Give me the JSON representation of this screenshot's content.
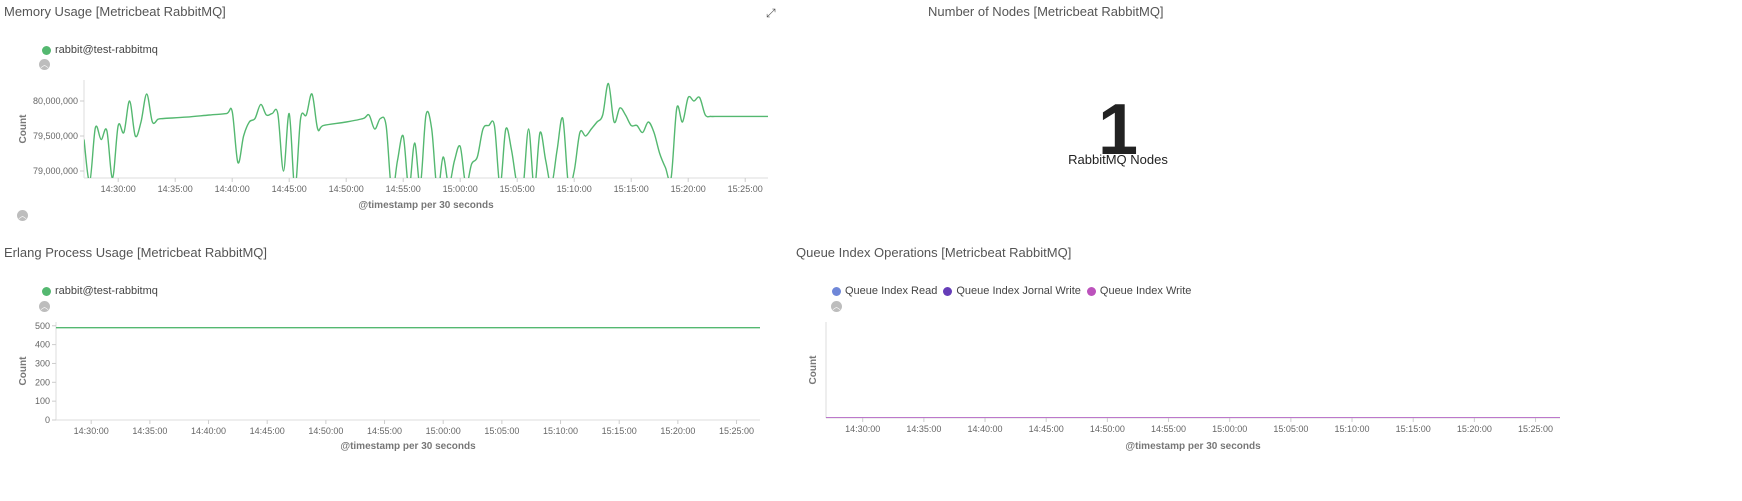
{
  "panels": {
    "memory": {
      "title": "Memory Usage [Metricbeat RabbitMQ]",
      "legend": "rabbit@test-rabbitmq",
      "color": "#54b870"
    },
    "nodes": {
      "title": "Number of Nodes [Metricbeat RabbitMQ]",
      "value": "1",
      "label": "RabbitMQ Nodes"
    },
    "erlang": {
      "title": "Erlang Process Usage [Metricbeat RabbitMQ]",
      "legend": "rabbit@test-rabbitmq",
      "color": "#54b870"
    },
    "queue": {
      "title": "Queue Index Operations [Metricbeat RabbitMQ]",
      "legend": [
        "Queue Index Read",
        "Queue Index Jornal Write",
        "Queue Index Write"
      ],
      "colors": [
        "#6f87d8",
        "#663db8",
        "#bc52bc"
      ]
    }
  },
  "icons": {
    "expand": "expand-icon",
    "toggle": "chevron-up-icon"
  },
  "chart_data": [
    {
      "id": "memory",
      "type": "line",
      "xlabel": "@timestamp per 30 seconds",
      "ylabel": "Count",
      "x_ticks": [
        "14:30:00",
        "14:35:00",
        "14:40:00",
        "14:45:00",
        "14:50:00",
        "14:55:00",
        "15:00:00",
        "15:05:00",
        "15:10:00",
        "15:15:00",
        "15:20:00",
        "15:25:00"
      ],
      "y_ticks": [
        "79,000,000",
        "79,500,000",
        "80,000,000"
      ],
      "ylim": [
        78900000,
        80300000
      ],
      "xlim": [
        "14:27:00",
        "15:27:00"
      ],
      "series": [
        {
          "name": "rabbit@test-rabbitmq",
          "x": [
            "14:27:00",
            "14:27:30",
            "14:28:00",
            "14:28:30",
            "14:29:00",
            "14:29:30",
            "14:30:00",
            "14:30:30",
            "14:31:00",
            "14:31:30",
            "14:32:00",
            "14:32:30",
            "14:33:00",
            "14:33:30",
            "14:34:00",
            "14:36:00",
            "14:38:00",
            "14:39:30",
            "14:40:00",
            "14:40:30",
            "14:41:00",
            "14:41:30",
            "14:42:00",
            "14:42:30",
            "14:43:00",
            "14:43:30",
            "14:44:00",
            "14:44:30",
            "14:45:00",
            "14:45:30",
            "14:46:00",
            "14:46:30",
            "14:47:00",
            "14:47:30",
            "14:48:00",
            "14:50:00",
            "14:51:30",
            "14:52:00",
            "14:52:30",
            "14:53:00",
            "14:53:30",
            "14:54:00",
            "14:54:30",
            "14:55:00",
            "14:55:30",
            "14:56:00",
            "14:56:30",
            "14:57:00",
            "14:57:30",
            "14:58:00",
            "14:58:30",
            "14:59:00",
            "14:59:30",
            "15:00:00",
            "15:00:30",
            "15:01:00",
            "15:01:30",
            "15:02:00",
            "15:02:30",
            "15:03:00",
            "15:03:30",
            "15:04:00",
            "15:04:30",
            "15:05:00",
            "15:05:30",
            "15:06:00",
            "15:06:30",
            "15:07:00",
            "15:07:30",
            "15:08:00",
            "15:08:30",
            "15:09:00",
            "15:09:30",
            "15:10:00",
            "15:10:30",
            "15:11:00",
            "15:11:30",
            "15:12:00",
            "15:12:30",
            "15:13:00",
            "15:13:30",
            "15:14:00",
            "15:14:30",
            "15:15:00",
            "15:15:30",
            "15:16:00",
            "15:16:30",
            "15:17:00",
            "15:17:30",
            "15:18:00",
            "15:18:30",
            "15:19:00",
            "15:19:30",
            "15:20:00",
            "15:20:30",
            "15:21:00",
            "15:21:30",
            "15:22:00",
            "15:22:30",
            "15:23:00",
            "15:23:30",
            "15:24:00",
            "15:24:30",
            "15:25:00",
            "15:25:30",
            "15:26:00",
            "15:26:30",
            "15:27:00"
          ],
          "values": [
            79450000,
            78850000,
            79620000,
            79450000,
            79580000,
            78900000,
            79650000,
            79550000,
            80000000,
            79500000,
            79700000,
            80100000,
            79700000,
            79740000,
            79750000,
            79770000,
            79800000,
            79820000,
            79850000,
            79120000,
            79500000,
            79700000,
            79750000,
            79950000,
            79800000,
            79820000,
            79820000,
            79000000,
            79820000,
            78750000,
            79750000,
            79800000,
            80100000,
            79600000,
            79650000,
            79700000,
            79750000,
            79800000,
            79600000,
            79750000,
            79650000,
            78700000,
            79150000,
            79500000,
            78750000,
            79400000,
            78800000,
            79800000,
            79600000,
            78700000,
            79200000,
            78800000,
            79150000,
            79350000,
            78800000,
            79100000,
            79200000,
            79600000,
            79650000,
            79650000,
            78800000,
            79600000,
            79300000,
            78800000,
            78750000,
            79600000,
            78750000,
            79550000,
            79150000,
            78800000,
            79300000,
            79750000,
            78800000,
            79000000,
            79550000,
            79500000,
            79600000,
            79700000,
            79800000,
            80250000,
            79700000,
            79900000,
            79800000,
            79650000,
            79650000,
            79550000,
            79700000,
            79550000,
            79250000,
            79050000,
            78900000,
            79900000,
            79700000,
            80050000,
            80000000,
            80050000,
            79800000,
            79780000,
            79780000,
            79780000,
            79780000,
            79780000,
            79780000,
            79780000,
            79780000,
            79780000,
            79780000,
            79780000
          ]
        }
      ]
    },
    {
      "id": "erlang",
      "type": "line",
      "xlabel": "@timestamp per 30 seconds",
      "ylabel": "Count",
      "x_ticks": [
        "14:30:00",
        "14:35:00",
        "14:40:00",
        "14:45:00",
        "14:50:00",
        "14:55:00",
        "15:00:00",
        "15:05:00",
        "15:10:00",
        "15:15:00",
        "15:20:00",
        "15:25:00"
      ],
      "y_ticks": [
        "0",
        "100",
        "200",
        "300",
        "400",
        "500"
      ],
      "ylim": [
        0,
        520
      ],
      "xlim": [
        "14:27:00",
        "15:27:00"
      ],
      "series": [
        {
          "name": "rabbit@test-rabbitmq",
          "x": [
            "14:27:00",
            "15:27:00"
          ],
          "values": [
            490,
            490
          ]
        }
      ]
    },
    {
      "id": "queue",
      "type": "line",
      "xlabel": "@timestamp per 30 seconds",
      "ylabel": "Count",
      "x_ticks": [
        "14:30:00",
        "14:35:00",
        "14:40:00",
        "14:45:00",
        "14:50:00",
        "14:55:00",
        "15:00:00",
        "15:05:00",
        "15:10:00",
        "15:15:00",
        "15:20:00",
        "15:25:00"
      ],
      "y_ticks": [],
      "ylim": [
        0,
        1
      ],
      "xlim": [
        "14:27:00",
        "15:27:00"
      ],
      "series": [
        {
          "name": "Queue Index Read",
          "x": [
            "14:27:00",
            "15:27:00"
          ],
          "values": [
            0,
            0
          ]
        },
        {
          "name": "Queue Index Jornal Write",
          "x": [
            "14:27:00",
            "15:27:00"
          ],
          "values": [
            0,
            0
          ]
        },
        {
          "name": "Queue Index Write",
          "x": [
            "14:27:00",
            "15:27:00"
          ],
          "values": [
            0,
            0
          ]
        }
      ]
    }
  ]
}
